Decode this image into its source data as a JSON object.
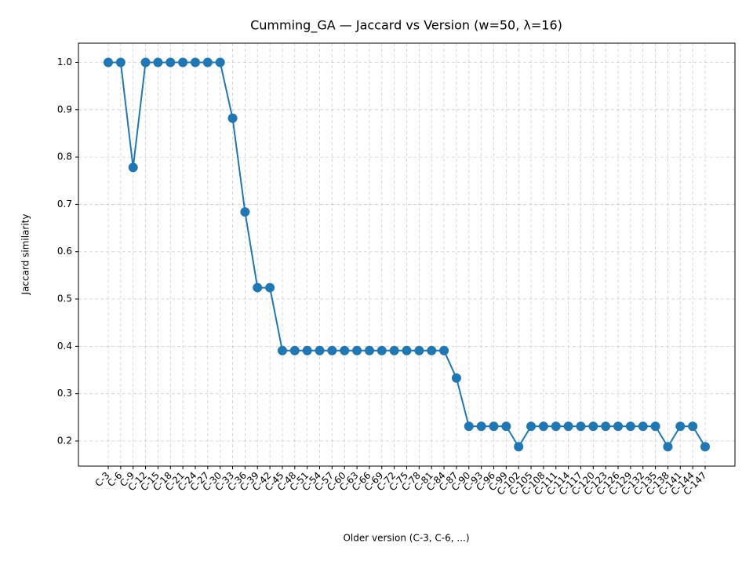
{
  "chart_data": {
    "type": "line",
    "title": "Cumming_GA — Jaccard vs Version (w=50, λ=16)",
    "x_label": "Older version (C-3, C-6, ...)",
    "y_label": "Jaccard similarity",
    "categories": [
      "C-3",
      "C-6",
      "C-9",
      "C-12",
      "C-15",
      "C-18",
      "C-21",
      "C-24",
      "C-27",
      "C-30",
      "C-33",
      "C-36",
      "C-39",
      "C-42",
      "C-45",
      "C-48",
      "C-51",
      "C-54",
      "C-57",
      "C-60",
      "C-63",
      "C-66",
      "C-69",
      "C-72",
      "C-75",
      "C-78",
      "C-81",
      "C-84",
      "C-87",
      "C-90",
      "C-93",
      "C-96",
      "C-99",
      "C-102",
      "C-105",
      "C-108",
      "C-111",
      "C-114",
      "C-117",
      "C-120",
      "C-123",
      "C-126",
      "C-129",
      "C-132",
      "C-135",
      "C-138",
      "C-141",
      "C-144",
      "C-147"
    ],
    "series": [
      {
        "name": "Jaccard",
        "color": "#1f77b4",
        "values": [
          1.0,
          1.0,
          0.778,
          1.0,
          1.0,
          1.0,
          1.0,
          1.0,
          1.0,
          1.0,
          0.882,
          0.684,
          0.524,
          0.524,
          0.391,
          0.391,
          0.391,
          0.391,
          0.391,
          0.391,
          0.391,
          0.391,
          0.391,
          0.391,
          0.391,
          0.391,
          0.391,
          0.391,
          0.333,
          0.231,
          0.231,
          0.231,
          0.231,
          0.188,
          0.231,
          0.231,
          0.231,
          0.231,
          0.231,
          0.231,
          0.231,
          0.231,
          0.231,
          0.231,
          0.231,
          0.188,
          0.231,
          0.231,
          0.188
        ]
      }
    ],
    "ylim": [
      0.1469,
      1.0406
    ],
    "yticks": [
      0.2,
      0.3,
      0.4,
      0.5,
      0.6,
      0.7,
      0.8,
      0.9,
      {
        "value": 1,
        "label": "1.0"
      }
    ],
    "grid": true
  }
}
